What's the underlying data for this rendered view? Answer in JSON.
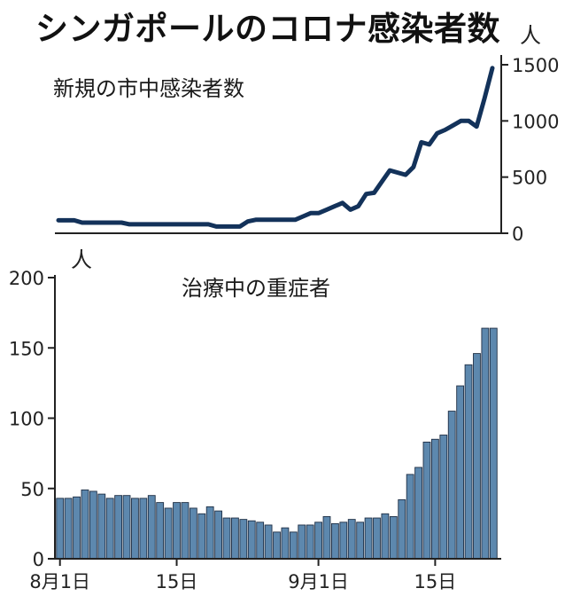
{
  "title": "シンガポールのコロナ感染者数",
  "colors": {
    "line": "#13325a",
    "bar_fill": "#5d88ae",
    "bar_stroke": "#1f2f45",
    "axis": "#222222"
  },
  "chart_data": [
    {
      "type": "line",
      "title": "新規の市中感染者数",
      "unit_label": "人",
      "ylim": [
        0,
        1500
      ],
      "yticks": [
        0,
        500,
        1000,
        1500
      ],
      "grid": false,
      "series": [
        {
          "values": [
            115,
            115,
            115,
            95,
            95,
            95,
            95,
            95,
            95,
            80,
            80,
            80,
            80,
            80,
            80,
            80,
            80,
            80,
            80,
            80,
            60,
            60,
            60,
            60,
            105,
            120,
            120,
            120,
            120,
            120,
            120,
            150,
            180,
            180,
            210,
            240,
            270,
            210,
            240,
            350,
            360,
            460,
            560,
            540,
            520,
            590,
            810,
            790,
            890,
            920,
            960,
            1000,
            1000,
            950,
            1200,
            1470
          ]
        }
      ]
    },
    {
      "type": "bar",
      "title": "治療中の重症者",
      "unit_label": "人",
      "ylim": [
        0,
        200
      ],
      "yticks": [
        0,
        50,
        100,
        150,
        200
      ],
      "x_tick_labels": [
        {
          "index": 0,
          "label": "8月1日"
        },
        {
          "index": 14,
          "label": "15日"
        },
        {
          "index": 31,
          "label": "9月1日"
        },
        {
          "index": 45,
          "label": "15日"
        }
      ],
      "grid": false,
      "series": [
        {
          "values": [
            43,
            43,
            44,
            49,
            48,
            46,
            43,
            45,
            45,
            43,
            43,
            45,
            40,
            36,
            40,
            40,
            36,
            32,
            37,
            34,
            29,
            29,
            28,
            27,
            26,
            24,
            19,
            22,
            19,
            24,
            24,
            26,
            30,
            25,
            26,
            28,
            26,
            29,
            29,
            32,
            30,
            42,
            60,
            65,
            83,
            85,
            88,
            105,
            123,
            138,
            146,
            164,
            164
          ]
        }
      ]
    }
  ]
}
